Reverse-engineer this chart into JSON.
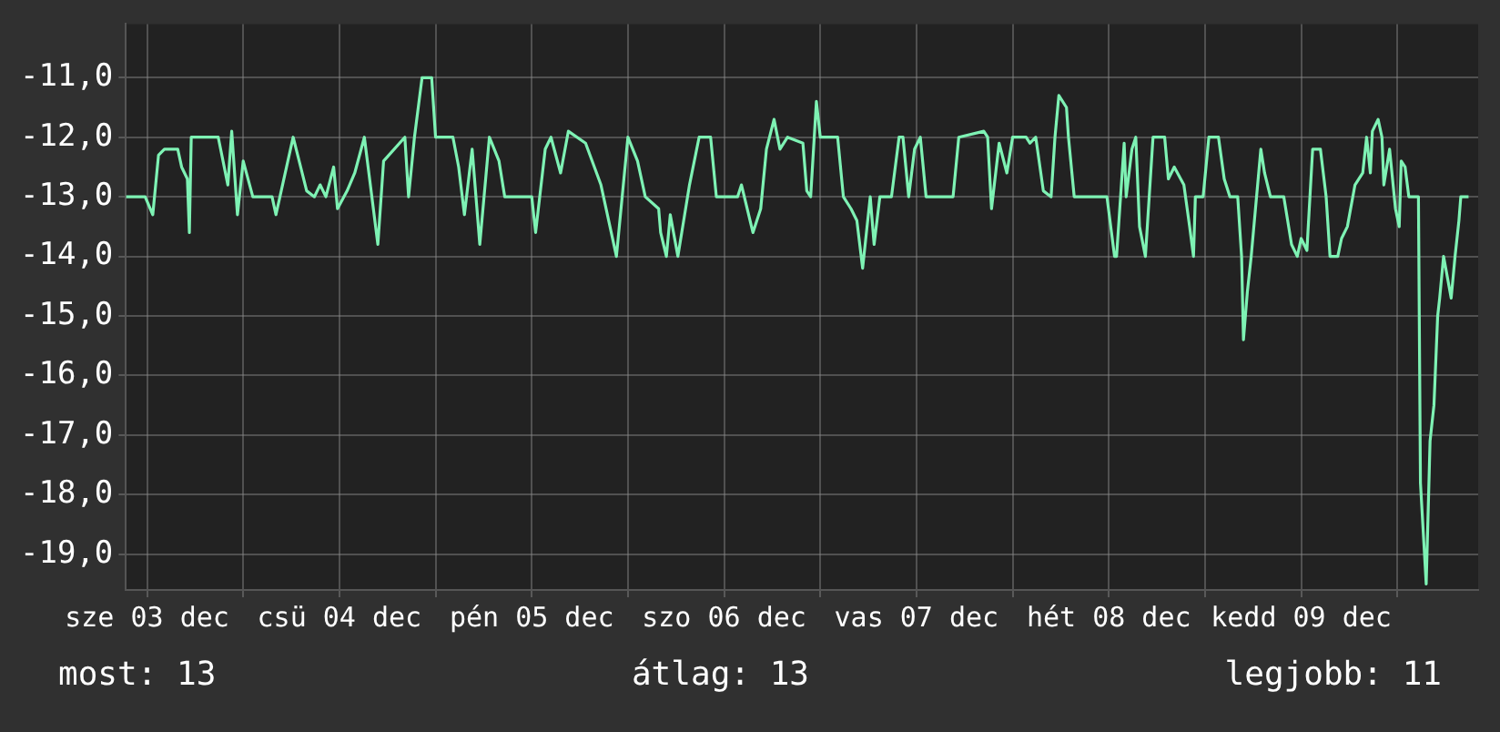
{
  "chart_data": {
    "type": "line",
    "x": [
      "--12-03T09:22",
      "--12-03T11:46",
      "--12-03T12:43",
      "--12-03T13:26",
      "--12-03T14:10",
      "--12-03T15:50",
      "--12-03T16:19",
      "--12-03T17:02",
      "--12-03T17:17",
      "--12-03T17:31",
      "--12-03T20:53",
      "--12-03T22:05",
      "--12-03T22:34",
      "--12-03T23:17",
      "--12-04T00:00",
      "--12-04T01:12",
      "--12-04T03:36",
      "--12-04T04:05",
      "--12-04T06:14",
      "--12-04T07:55",
      "--12-04T08:53",
      "--12-04T09:36",
      "--12-04T10:19",
      "--12-04T11:17",
      "--12-04T11:46",
      "--12-04T12:58",
      "--12-04T13:55",
      "--12-04T15:07",
      "--12-04T16:48",
      "--12-04T17:31",
      "--12-04T20:10",
      "--12-04T20:38",
      "--12-04T21:22",
      "--12-04T22:19",
      "--12-04T23:31",
      "--12-05T00:00",
      "--12-05T02:10",
      "--12-05T02:53",
      "--12-05T03:36",
      "--12-05T04:34",
      "--12-05T05:31",
      "--12-05T06:43",
      "--12-05T07:55",
      "--12-05T08:38",
      "--12-05T12:00",
      "--12-05T12:29",
      "--12-05T13:41",
      "--12-05T14:24",
      "--12-05T15:36",
      "--12-05T16:34",
      "--12-05T18:43",
      "--12-05T20:38",
      "--12-05T22:34",
      "--12-06T00:00",
      "--12-06T01:12",
      "--12-06T02:10",
      "--12-06T03:50",
      "--12-06T04:05",
      "--12-06T04:48",
      "--12-06T05:17",
      "--12-06T06:14",
      "--12-06T07:41",
      "--12-06T08:53",
      "--12-06T10:19",
      "--12-06T11:02",
      "--12-06T13:41",
      "--12-06T14:10",
      "--12-06T15:36",
      "--12-06T16:34",
      "--12-06T17:17",
      "--12-06T18:14",
      "--12-06T18:58",
      "--12-06T19:55",
      "--12-06T21:50",
      "--12-06T22:19",
      "--12-06T22:48",
      "--12-06T23:31",
      "--12-07T00:00",
      "--12-07T02:10",
      "--12-07T02:53",
      "--12-07T03:50",
      "--12-07T04:34",
      "--12-07T05:17",
      "--12-07T06:14",
      "--12-07T06:43",
      "--12-07T07:26",
      "--12-07T08:53",
      "--12-07T09:50",
      "--12-07T10:19",
      "--12-07T11:02",
      "--12-07T11:46",
      "--12-07T12:29",
      "--12-07T13:12",
      "--12-07T16:34",
      "--12-07T17:17",
      "--12-07T20:24",
      "--12-07T20:53",
      "--12-07T21:22",
      "--12-07T22:19",
      "--12-07T23:17",
      "--12-08T00:00",
      "--12-08T01:41",
      "--12-08T02:10",
      "--12-08T02:53",
      "--12-08T03:50",
      "--12-08T04:48",
      "--12-08T05:17",
      "--12-08T05:46",
      "--12-08T06:43",
      "--12-08T06:58",
      "--12-08T07:41",
      "--12-08T11:46",
      "--12-08T12:43",
      "--12-08T12:58",
      "--12-08T13:55",
      "--12-08T14:10",
      "--12-08T14:53",
      "--12-08T15:22",
      "--12-08T15:50",
      "--12-08T16:34",
      "--12-08T17:31",
      "--12-08T18:58",
      "--12-08T19:26",
      "--12-08T20:10",
      "--12-08T21:22",
      "--12-08T22:05",
      "--12-08T22:34",
      "--12-08T22:48",
      "--12-08T23:46",
      "--12-09T00:29",
      "--12-09T01:41",
      "--12-09T02:24",
      "--12-09T03:07",
      "--12-09T04:05",
      "--12-09T04:34",
      "--12-09T04:48",
      "--12-09T05:17",
      "--12-09T05:46",
      "--12-09T06:58",
      "--12-09T07:26",
      "--12-09T08:10",
      "--12-09T09:50",
      "--12-09T10:48",
      "--12-09T11:31",
      "--12-09T12:00",
      "--12-09T12:43",
      "--12-09T13:26",
      "--12-09T14:24",
      "--12-09T15:07",
      "--12-09T15:36",
      "--12-09T16:34",
      "--12-09T17:02",
      "--12-09T17:46",
      "--12-09T18:43",
      "--12-09T19:41",
      "--12-09T20:10",
      "--12-09T20:38",
      "--12-09T20:53",
      "--12-09T21:36",
      "--12-09T22:05",
      "--12-09T22:19",
      "--12-09T23:02",
      "--12-09T23:46",
      "--12-10T00:14",
      "--12-10T00:29",
      "--12-10T00:58",
      "--12-10T01:26",
      "--12-10T02:38",
      "--12-10T02:53",
      "--12-10T03:36",
      "--12-10T04:05",
      "--12-10T04:34",
      "--12-10T05:02",
      "--12-10T05:17",
      "--12-10T05:46",
      "--12-10T06:43",
      "--12-10T07:12",
      "--12-10T07:41",
      "--12-10T07:55",
      "--12-10T08:53"
    ],
    "series": [
      {
        "color": "#7ef2b4",
        "values": [
          -13.0,
          -13.0,
          -13.3,
          -12.3,
          -12.2,
          -12.2,
          -12.5,
          -12.7,
          -13.6,
          -12.0,
          -12.0,
          -12.8,
          -11.9,
          -13.3,
          -12.4,
          -13.0,
          -13.0,
          -13.3,
          -12.0,
          -12.9,
          -13.0,
          -12.8,
          -13.0,
          -12.5,
          -13.2,
          -12.9,
          -12.6,
          -12.0,
          -13.8,
          -12.4,
          -12.0,
          -13.0,
          -12.0,
          -11.0,
          -11.0,
          -12.0,
          -12.0,
          -12.5,
          -13.3,
          -12.2,
          -13.8,
          -12.0,
          -12.4,
          -13.0,
          -13.0,
          -13.6,
          -12.2,
          -12.0,
          -12.6,
          -11.9,
          -12.1,
          -12.8,
          -14.0,
          -12.0,
          -12.4,
          -13.0,
          -13.2,
          -13.6,
          -14.0,
          -13.3,
          -14.0,
          -12.8,
          -12.0,
          -12.0,
          -13.0,
          -13.0,
          -12.8,
          -13.6,
          -13.2,
          -12.2,
          -11.7,
          -12.2,
          -12.0,
          -12.1,
          -12.9,
          -13.0,
          -11.4,
          -12.0,
          -12.0,
          -13.0,
          -13.2,
          -13.4,
          -14.2,
          -13.0,
          -13.8,
          -13.0,
          -13.0,
          -12.0,
          -12.0,
          -13.0,
          -12.2,
          -12.0,
          -13.0,
          -13.0,
          -12.0,
          -11.9,
          -12.0,
          -13.2,
          -12.1,
          -12.6,
          -12.0,
          -12.0,
          -12.1,
          -12.0,
          -12.9,
          -13.0,
          -12.0,
          -11.3,
          -11.5,
          -12.0,
          -13.0,
          -13.0,
          -14.0,
          -14.0,
          -12.1,
          -13.0,
          -12.2,
          -12.0,
          -13.5,
          -14.0,
          -12.0,
          -12.0,
          -12.7,
          -12.5,
          -12.8,
          -13.5,
          -14.0,
          -13.0,
          -13.0,
          -12.0,
          -12.0,
          -12.7,
          -13.0,
          -13.0,
          -14.0,
          -15.4,
          -14.6,
          -14.0,
          -12.2,
          -12.6,
          -13.0,
          -13.0,
          -13.8,
          -14.0,
          -13.7,
          -13.9,
          -12.2,
          -12.2,
          -13.0,
          -14.0,
          -14.0,
          -13.7,
          -13.5,
          -12.8,
          -12.6,
          -12.0,
          -12.6,
          -11.9,
          -11.7,
          -12.0,
          -12.8,
          -12.2,
          -13.2,
          -13.5,
          -12.4,
          -12.5,
          -13.0,
          -13.0,
          -17.8,
          -19.5,
          -17.1,
          -16.5,
          -15.0,
          -14.7,
          -14.0,
          -14.7,
          -14.0,
          -13.4,
          -13.0,
          -13.0
        ]
      }
    ],
    "xlim": [
      "--12-03T09:22",
      "--12-10T10:05"
    ],
    "xticks": [
      {
        "value": "--12-03T12:00",
        "label": "sze 03 dec"
      },
      {
        "value": "--12-04T00:00",
        "label": null
      },
      {
        "value": "--12-04T12:00",
        "label": "csü 04 dec"
      },
      {
        "value": "--12-05T00:00",
        "label": null
      },
      {
        "value": "--12-05T12:00",
        "label": "pén 05 dec"
      },
      {
        "value": "--12-06T00:00",
        "label": null
      },
      {
        "value": "--12-06T12:00",
        "label": "szo 06 dec"
      },
      {
        "value": "--12-07T00:00",
        "label": null
      },
      {
        "value": "--12-07T12:00",
        "label": "vas 07 dec"
      },
      {
        "value": "--12-08T00:00",
        "label": null
      },
      {
        "value": "--12-08T12:00",
        "label": "hét 08 dec"
      },
      {
        "value": "--12-09T00:00",
        "label": null
      },
      {
        "value": "--12-09T12:00",
        "label": "kedd 09 dec"
      },
      {
        "value": "--12-10T00:00",
        "label": null
      }
    ],
    "ylim": [
      -19.6,
      -10.1
    ],
    "yticks": [
      {
        "value": -19,
        "label": "-19,0"
      },
      {
        "value": -18,
        "label": "-18,0"
      },
      {
        "value": -17,
        "label": "-17,0"
      },
      {
        "value": -16,
        "label": "-16,0"
      },
      {
        "value": -15,
        "label": "-15,0"
      },
      {
        "value": -14,
        "label": "-14,0"
      },
      {
        "value": -13,
        "label": "-13,0"
      },
      {
        "value": -12,
        "label": "-12,0"
      },
      {
        "value": -11,
        "label": "-11,0"
      }
    ],
    "grid": true,
    "legend": false,
    "marker": "none",
    "line_style": "solid",
    "annotations": [
      "most: 13",
      "átlag: 13",
      "legjobb: 11"
    ]
  }
}
